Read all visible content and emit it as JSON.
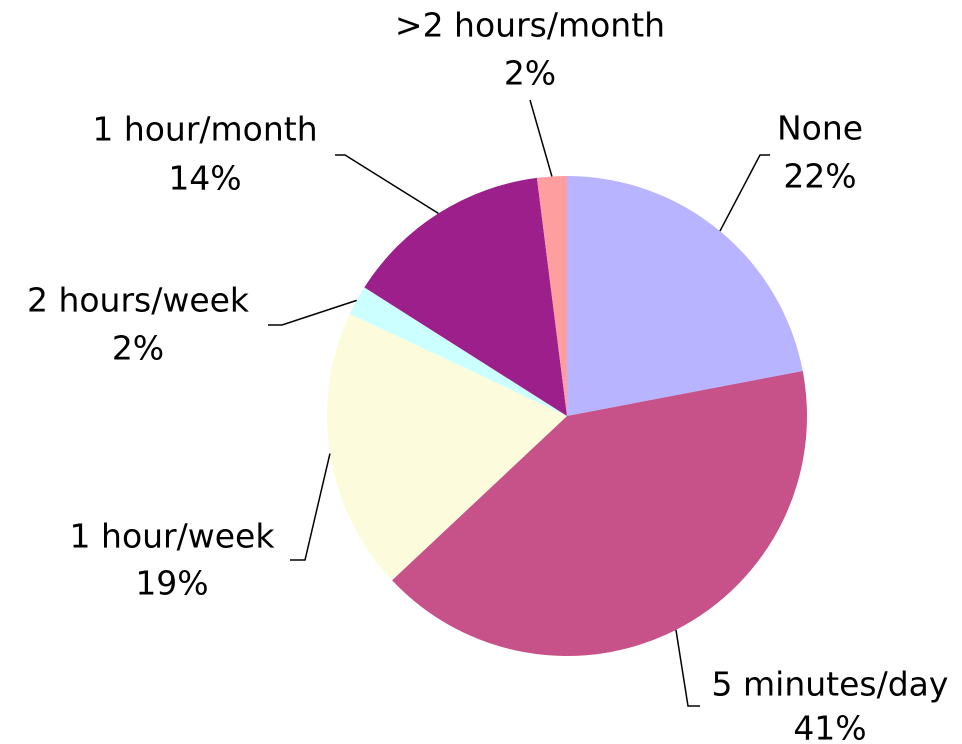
{
  "chart_data": {
    "type": "pie",
    "categories": [
      "None",
      "5 minutes/day",
      "1 hour/week",
      "2 hours/week",
      "1 hour/month",
      ">2 hours/month"
    ],
    "values": [
      22,
      41,
      19,
      2,
      14,
      2
    ],
    "value_labels": [
      "22%",
      "41%",
      "19%",
      "2%",
      "14%",
      "2%"
    ],
    "colors": [
      "#b8b4ff",
      "#c75189",
      "#fcfcdc",
      "#ccffff",
      "#9c1f8c",
      "#ff9e9e"
    ]
  }
}
